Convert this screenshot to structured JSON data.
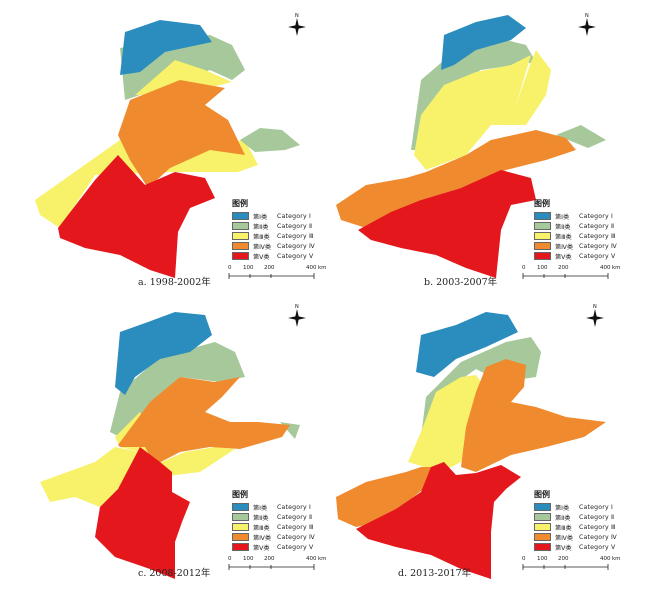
{
  "legend": {
    "title": "图例",
    "items": [
      {
        "zh": "第Ⅰ类",
        "en": "Category Ⅰ",
        "color": "#2b8cbe"
      },
      {
        "zh": "第Ⅱ类",
        "en": "Category Ⅱ",
        "color": "#a6c89a"
      },
      {
        "zh": "第Ⅲ类",
        "en": "Category Ⅲ",
        "color": "#f7f26a"
      },
      {
        "zh": "第Ⅳ类",
        "en": "Category Ⅳ",
        "color": "#f08a2f"
      },
      {
        "zh": "第Ⅴ类",
        "en": "Category Ⅴ",
        "color": "#e3171c"
      }
    ]
  },
  "scalebar": {
    "ticks": [
      "0",
      "100",
      "200",
      "400"
    ],
    "unit": "km"
  },
  "compass_label": "N",
  "panels": [
    {
      "caption": "a. 1998-2002年"
    },
    {
      "caption": "b. 2003-2007年"
    },
    {
      "caption": "c. 2008-2012年"
    },
    {
      "caption": "d. 2013-2017年"
    }
  ]
}
